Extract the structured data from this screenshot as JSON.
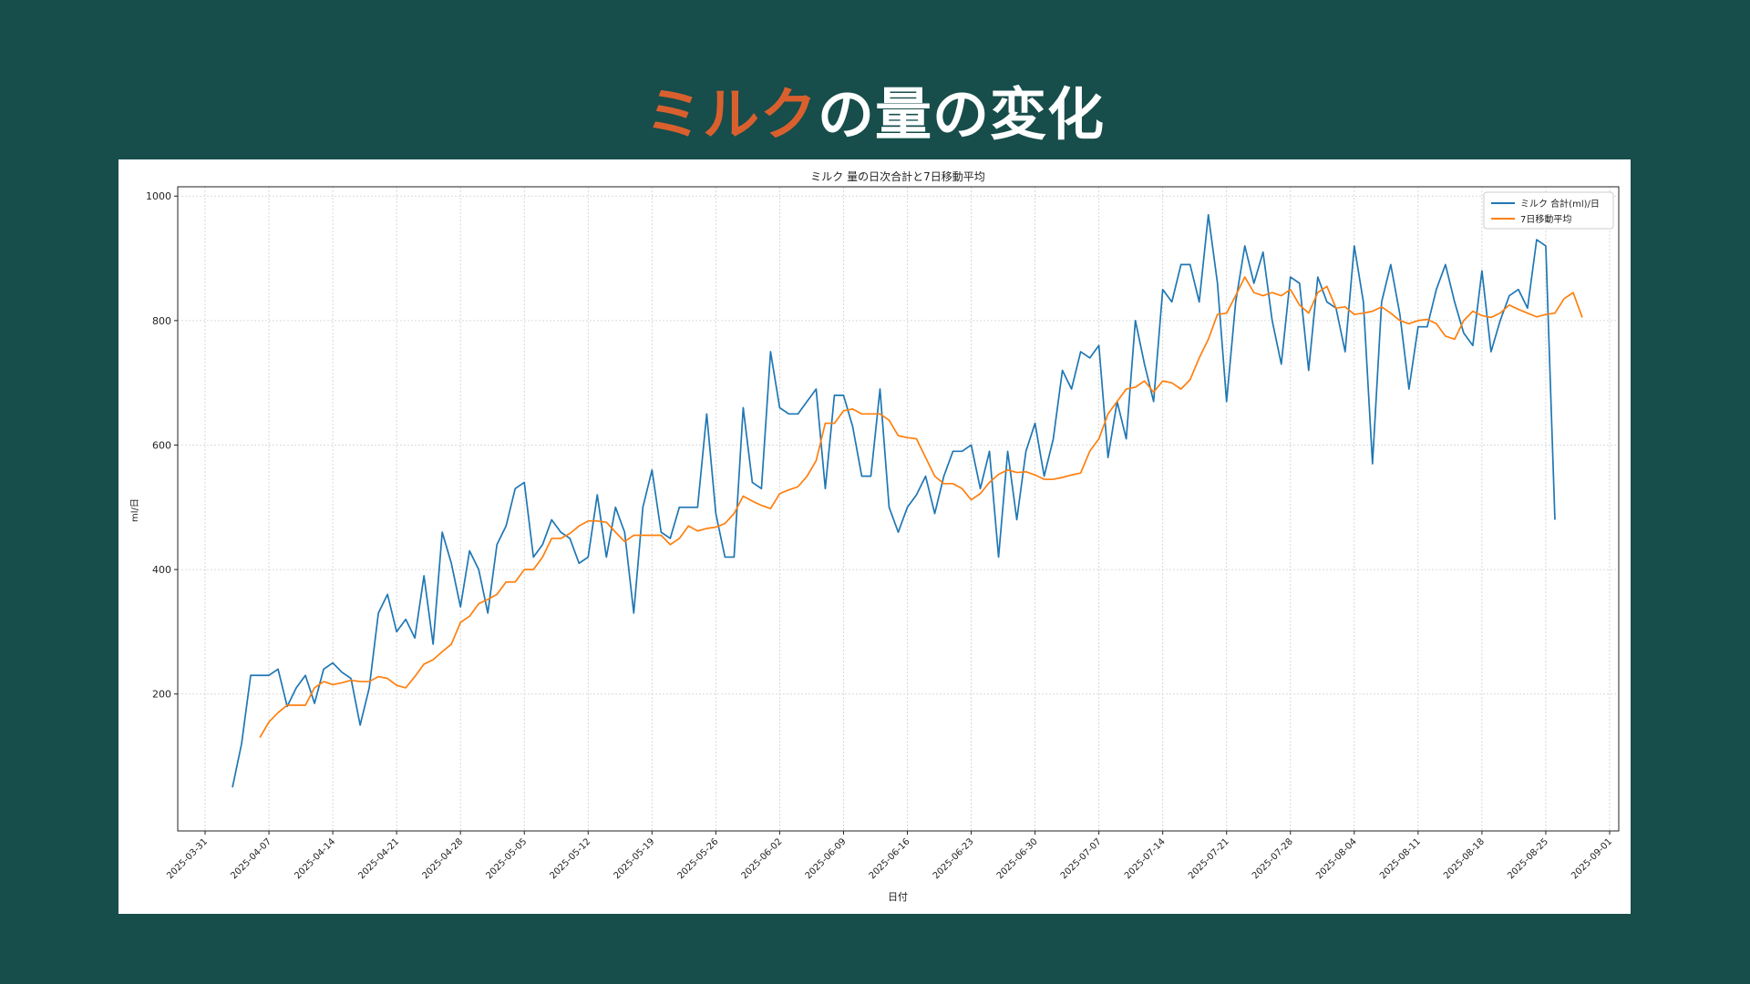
{
  "slide": {
    "title_accent": "ミルク",
    "title_rest": "の量の変化"
  },
  "colors": {
    "background": "#174d4b",
    "title_accent": "#d9602e",
    "series_daily": "#1f77b4",
    "series_ma": "#ff7f0e"
  },
  "chart_data": {
    "type": "line",
    "title": "ミルク 量の日次合計と7日移動平均",
    "xlabel": "日付",
    "ylabel": "ml/日",
    "xlim": [
      "2025-03-28",
      "2025-09-02"
    ],
    "ylim": [
      -20,
      1015
    ],
    "y_ticks": [
      200,
      400,
      600,
      800,
      1000
    ],
    "x_ticks": [
      "2025-03-31",
      "2025-04-07",
      "2025-04-14",
      "2025-04-21",
      "2025-04-28",
      "2025-05-05",
      "2025-05-12",
      "2025-05-19",
      "2025-05-26",
      "2025-06-02",
      "2025-06-09",
      "2025-06-16",
      "2025-06-23",
      "2025-06-30",
      "2025-07-07",
      "2025-07-14",
      "2025-07-21",
      "2025-07-28",
      "2025-08-04",
      "2025-08-11",
      "2025-08-18",
      "2025-08-25",
      "2025-09-01"
    ],
    "grid": true,
    "legend_position": "top-right",
    "series": [
      {
        "name": "ミルク 合計(ml)/日",
        "color": "#1f77b4",
        "start_date": "2025-04-03",
        "values": [
          50,
          120,
          230,
          230,
          230,
          240,
          180,
          210,
          230,
          185,
          240,
          250,
          235,
          225,
          150,
          210,
          330,
          360,
          300,
          320,
          290,
          390,
          280,
          460,
          410,
          340,
          430,
          400,
          330,
          440,
          470,
          530,
          540,
          420,
          440,
          480,
          460,
          450,
          410,
          420,
          520,
          420,
          500,
          460,
          330,
          500,
          560,
          460,
          450,
          500,
          500,
          500,
          650,
          490,
          420,
          420,
          660,
          540,
          530,
          750,
          660,
          650,
          650,
          670,
          690,
          530,
          680,
          680,
          630,
          550,
          550,
          690,
          500,
          460,
          500,
          520,
          550,
          490,
          550,
          590,
          590,
          600,
          530,
          590,
          420,
          590,
          480,
          590,
          635,
          550,
          610,
          720,
          690,
          750,
          740,
          760,
          580,
          670,
          610,
          800,
          730,
          670,
          850,
          830,
          890,
          890,
          830,
          970,
          860,
          670,
          830,
          920,
          860,
          910,
          800,
          730,
          870,
          860,
          720,
          870,
          830,
          820,
          750,
          920,
          830,
          570,
          830,
          890,
          810,
          690,
          790,
          790,
          850,
          890,
          830,
          780,
          760,
          880,
          750,
          800,
          840,
          850,
          820,
          930,
          920,
          480
        ]
      },
      {
        "name": "7日移動平均",
        "color": "#ff7f0e",
        "start_date": "2025-04-06",
        "values": [
          130,
          155,
          170,
          182,
          182,
          182,
          210,
          220,
          215,
          218,
          222,
          220,
          220,
          228,
          225,
          214,
          210,
          228,
          248,
          255,
          268,
          280,
          315,
          325,
          345,
          352,
          360,
          380,
          380,
          400,
          400,
          420,
          450,
          450,
          458,
          470,
          478,
          478,
          476,
          460,
          445,
          455,
          455,
          455,
          455,
          440,
          450,
          470,
          462,
          466,
          468,
          474,
          490,
          518,
          510,
          503,
          498,
          522,
          528,
          533,
          550,
          575,
          635,
          635,
          655,
          658,
          650,
          650,
          650,
          640,
          615,
          612,
          610,
          580,
          550,
          538,
          538,
          530,
          512,
          522,
          540,
          553,
          560,
          556,
          557,
          552,
          545,
          545,
          548,
          552,
          555,
          590,
          610,
          650,
          670,
          690,
          693,
          703,
          685,
          703,
          700,
          690,
          705,
          740,
          770,
          810,
          812,
          840,
          870,
          845,
          840,
          845,
          840,
          850,
          825,
          812,
          845,
          855,
          820,
          822,
          810,
          812,
          815,
          822,
          812,
          800,
          795,
          800,
          802,
          795,
          775,
          770,
          800,
          815,
          808,
          805,
          812,
          825,
          818,
          812,
          806,
          810,
          812,
          835,
          845,
          805
        ]
      }
    ]
  }
}
